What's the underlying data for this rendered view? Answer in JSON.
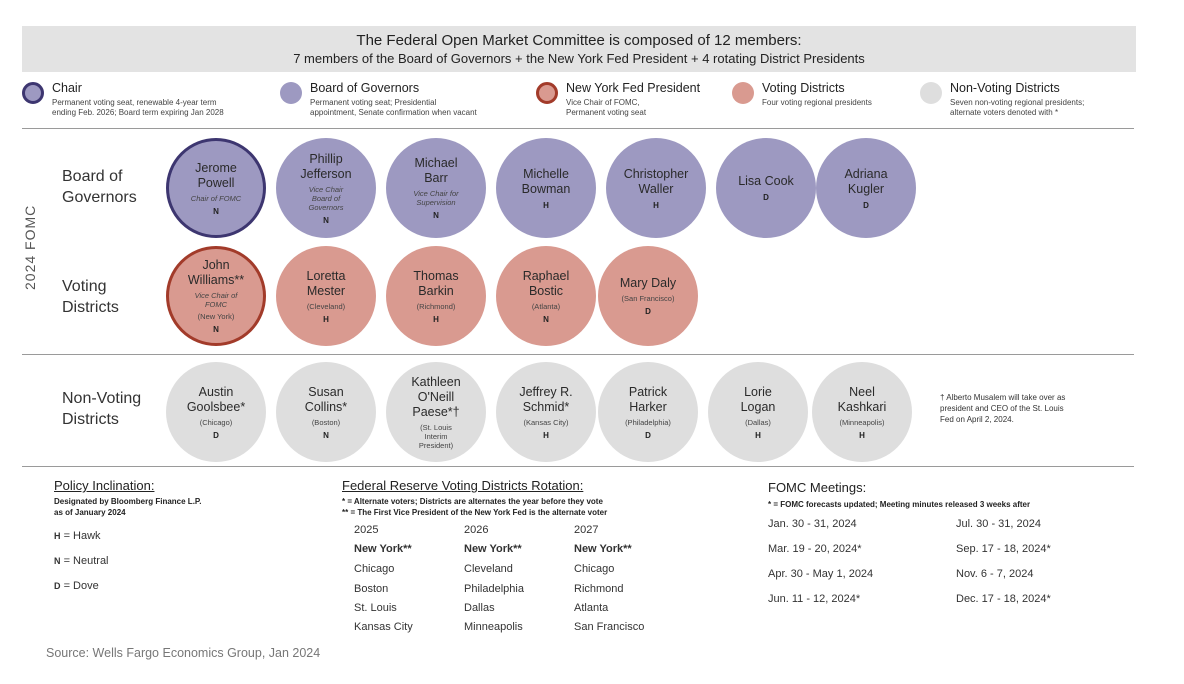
{
  "header": {
    "line1": "The Federal Open Market Committee is composed of 12 members:",
    "line2": "7 members of the Board of Governors + the New York Fed President + 4 rotating District Presidents"
  },
  "legend": [
    {
      "title": "Chair",
      "desc1": "Permanent voting seat, renewable 4-year term",
      "desc2": "ending Feb. 2026; Board term expiring Jan 2028",
      "fill": "#9d99c1",
      "border": "#3d3670"
    },
    {
      "title": "Board of Governors",
      "desc1": "Permanent voting seat; Presidential",
      "desc2": "appointment, Senate confirmation when vacant",
      "fill": "#9d99c1",
      "border": "none"
    },
    {
      "title": "New York Fed President",
      "desc1": "Vice Chair of FOMC,",
      "desc2": "Permanent voting seat",
      "fill": "#d99a90",
      "border": "#a23b2a"
    },
    {
      "title": "Voting Districts",
      "desc1": "Four voting regional presidents",
      "desc2": "",
      "fill": "#d99a90",
      "border": "none"
    },
    {
      "title": "Non-Voting Districts",
      "desc1": "Seven non-voting regional presidents;",
      "desc2": "alternate voters denoted with *",
      "fill": "#dedede",
      "border": "none"
    }
  ],
  "vertical_label": "2024 FOMC",
  "rows": {
    "governors_label": [
      "Board of",
      "Governors"
    ],
    "voting_label": [
      "Voting",
      "Districts"
    ],
    "nonvoting_label": [
      "Non-Voting",
      "Districts"
    ]
  },
  "governors": [
    {
      "name1": "Jerome",
      "name2": "Powell",
      "desc": "Chair of FOMC",
      "incl": "N",
      "kind": "chair"
    },
    {
      "name1": "Phillip",
      "name2": "Jefferson",
      "desc": "Vice Chair Board of Governors",
      "incl": "N",
      "kind": "gov"
    },
    {
      "name1": "Michael",
      "name2": "Barr",
      "desc": "Vice Chair for Supervision",
      "incl": "N",
      "kind": "gov"
    },
    {
      "name1": "Michelle",
      "name2": "Bowman",
      "desc": "",
      "incl": "H",
      "kind": "gov"
    },
    {
      "name1": "Christopher",
      "name2": "Waller",
      "desc": "",
      "incl": "H",
      "kind": "gov"
    },
    {
      "name1": "Lisa Cook",
      "name2": "",
      "desc": "",
      "incl": "D",
      "kind": "gov"
    },
    {
      "name1": "Adriana",
      "name2": "Kugler",
      "desc": "",
      "incl": "D",
      "kind": "gov"
    }
  ],
  "voting": [
    {
      "name1": "John",
      "name2": "Williams**",
      "desc": "Vice Chair of FOMC",
      "city": "(New York)",
      "incl": "N",
      "kind": "nyf"
    },
    {
      "name1": "Loretta",
      "name2": "Mester",
      "desc": "",
      "city": "(Cleveland)",
      "incl": "H",
      "kind": "vot"
    },
    {
      "name1": "Thomas",
      "name2": "Barkin",
      "desc": "",
      "city": "(Richmond)",
      "incl": "H",
      "kind": "vot"
    },
    {
      "name1": "Raphael",
      "name2": "Bostic",
      "desc": "",
      "city": "(Atlanta)",
      "incl": "N",
      "kind": "vot"
    },
    {
      "name1": "Mary Daly",
      "name2": "",
      "desc": "",
      "city": "(San Francisco)",
      "incl": "D",
      "kind": "vot"
    }
  ],
  "nonvoting": [
    {
      "name1": "Austin",
      "name2": "Goolsbee*",
      "name3": "",
      "city": "(Chicago)",
      "incl": "D"
    },
    {
      "name1": "Susan",
      "name2": "Collins*",
      "name3": "",
      "city": "(Boston)",
      "incl": "N"
    },
    {
      "name1": "Kathleen",
      "name2": "O'Neill",
      "name3": "Paese*†",
      "city": "(St. Louis Interim President)",
      "incl": ""
    },
    {
      "name1": "Jeffrey R.",
      "name2": "Schmid*",
      "name3": "",
      "city": "(Kansas City)",
      "incl": "H"
    },
    {
      "name1": "Patrick",
      "name2": "Harker",
      "name3": "",
      "city": "(Philadelphia)",
      "incl": "D"
    },
    {
      "name1": "Lorie",
      "name2": "Logan",
      "name3": "",
      "city": "(Dallas)",
      "incl": "H"
    },
    {
      "name1": "Neel",
      "name2": "Kashkari",
      "name3": "",
      "city": "(Minneapolis)",
      "incl": "H"
    }
  ],
  "footnote": "† Alberto Musalem will take over as president and CEO of the St. Louis Fed on April 2, 2024.",
  "policy": {
    "title": "Policy Inclination:",
    "note1": "Designated by Bloomberg Finance L.P.",
    "note2": "as of January 2024",
    "items": [
      {
        "code": "H",
        "label": "= Hawk"
      },
      {
        "code": "N",
        "label": "= Neutral"
      },
      {
        "code": "D",
        "label": "= Dove"
      }
    ]
  },
  "rotation": {
    "title": "Federal Reserve Voting Districts Rotation:",
    "note1": "* = Alternate voters; Districts are alternates the year before they vote",
    "note2": "** = The First Vice President of the New York Fed is the alternate voter",
    "years": [
      {
        "year": "2025",
        "districts": [
          "New York**",
          "Chicago",
          "Boston",
          "St. Louis",
          "Kansas City"
        ]
      },
      {
        "year": "2026",
        "districts": [
          "New York**",
          "Cleveland",
          "Philadelphia",
          "Dallas",
          "Minneapolis"
        ]
      },
      {
        "year": "2027",
        "districts": [
          "New York**",
          "Chicago",
          "Richmond",
          "Atlanta",
          "San Francisco"
        ]
      }
    ]
  },
  "meetings": {
    "title": "FOMC Meetings:",
    "note": "* = FOMC forecasts updated; Meeting minutes released 3 weeks after",
    "col1": [
      "Jan. 30 - 31, 2024",
      "Mar. 19 - 20, 2024*",
      "Apr. 30 - May 1, 2024",
      "Jun. 11 - 12, 2024*"
    ],
    "col2": [
      "Jul. 30 - 31, 2024",
      "Sep. 17 - 18, 2024*",
      "Nov. 6 - 7, 2024",
      "Dec. 17 - 18, 2024*"
    ]
  },
  "source": "Source: Wells Fargo Economics Group, Jan 2024"
}
